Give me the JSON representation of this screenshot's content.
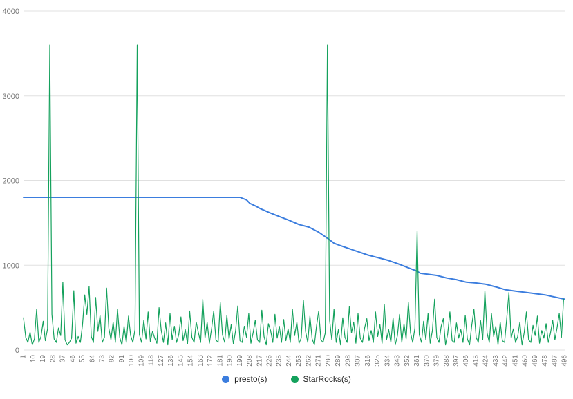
{
  "colors": {
    "grid": "#e0e0e0",
    "axis_text": "#757575",
    "legend_text": "#222222",
    "background": "#ffffff"
  },
  "chart_data": {
    "type": "line",
    "title": "",
    "xlabel": "",
    "ylabel": "",
    "grid": "horizontal",
    "legend_position": "bottom",
    "ylim": [
      0,
      4000
    ],
    "y_ticks": [
      0,
      1000,
      2000,
      3000,
      4000
    ],
    "x_range": [
      1,
      496
    ],
    "x_tick_labels": [
      1,
      10,
      19,
      28,
      37,
      46,
      55,
      64,
      73,
      82,
      91,
      100,
      109,
      118,
      127,
      136,
      145,
      154,
      163,
      172,
      181,
      190,
      199,
      208,
      217,
      226,
      235,
      244,
      253,
      262,
      271,
      280,
      289,
      298,
      307,
      316,
      325,
      334,
      343,
      352,
      361,
      370,
      379,
      388,
      397,
      406,
      415,
      424,
      433,
      442,
      451,
      460,
      469,
      478,
      487,
      496
    ],
    "series": [
      {
        "name": "presto(s)",
        "color": "#3b7dde",
        "stroke_width": 2,
        "points": [
          [
            1,
            1800
          ],
          [
            199,
            1800
          ],
          [
            205,
            1770
          ],
          [
            208,
            1730
          ],
          [
            213,
            1700
          ],
          [
            217,
            1672
          ],
          [
            226,
            1620
          ],
          [
            235,
            1575
          ],
          [
            244,
            1530
          ],
          [
            253,
            1480
          ],
          [
            262,
            1450
          ],
          [
            271,
            1390
          ],
          [
            280,
            1310
          ],
          [
            285,
            1260
          ],
          [
            289,
            1240
          ],
          [
            298,
            1200
          ],
          [
            307,
            1160
          ],
          [
            316,
            1120
          ],
          [
            325,
            1090
          ],
          [
            334,
            1060
          ],
          [
            343,
            1020
          ],
          [
            352,
            975
          ],
          [
            361,
            930
          ],
          [
            364,
            905
          ],
          [
            370,
            895
          ],
          [
            379,
            880
          ],
          [
            388,
            850
          ],
          [
            397,
            830
          ],
          [
            406,
            800
          ],
          [
            415,
            790
          ],
          [
            424,
            775
          ],
          [
            433,
            745
          ],
          [
            442,
            710
          ],
          [
            451,
            695
          ],
          [
            460,
            680
          ],
          [
            469,
            665
          ],
          [
            478,
            650
          ],
          [
            487,
            625
          ],
          [
            496,
            600
          ]
        ]
      },
      {
        "name": "StarRocks(s)",
        "color": "#14a15c",
        "stroke_width": 1.2,
        "x_start": 1,
        "x_step": 2,
        "values": [
          380,
          150,
          90,
          210,
          60,
          130,
          480,
          90,
          160,
          340,
          110,
          250,
          3600,
          420,
          130,
          90,
          260,
          170,
          800,
          120,
          60,
          90,
          140,
          700,
          80,
          160,
          90,
          300,
          650,
          420,
          750,
          160,
          90,
          620,
          220,
          410,
          90,
          150,
          730,
          260,
          120,
          330,
          90,
          480,
          150,
          60,
          280,
          90,
          400,
          170,
          90,
          240,
          3600,
          180,
          90,
          350,
          130,
          450,
          100,
          220,
          140,
          80,
          500,
          230,
          90,
          320,
          60,
          430,
          120,
          280,
          90,
          180,
          390,
          110,
          240,
          70,
          460,
          150,
          90,
          330,
          200,
          90,
          600,
          140,
          330,
          80,
          250,
          460,
          120,
          90,
          560,
          180,
          90,
          410,
          130,
          300,
          70,
          230,
          520,
          110,
          90,
          280,
          150,
          430,
          80,
          200,
          350,
          120,
          90,
          470,
          160,
          60,
          310,
          230,
          90,
          420,
          140,
          280,
          90,
          360,
          110,
          250,
          90,
          480,
          170,
          330,
          80,
          140,
          590,
          220,
          90,
          400,
          130,
          60,
          280,
          460,
          120,
          90,
          200,
          3600,
          350,
          120,
          480,
          90,
          240,
          60,
          380,
          150,
          90,
          510,
          200,
          330,
          80,
          430,
          140,
          90,
          260,
          370,
          110,
          230,
          90,
          450,
          160,
          300,
          80,
          540,
          120,
          240,
          90,
          380,
          60,
          170,
          420,
          90,
          310,
          130,
          560,
          200,
          90,
          260,
          1400,
          180,
          90,
          340,
          120,
          430,
          80,
          230,
          600,
          150,
          90,
          280,
          370,
          60,
          190,
          450,
          110,
          90,
          320,
          140,
          240,
          90,
          410,
          130,
          60,
          290,
          480,
          150,
          90,
          350,
          120,
          700,
          200,
          90,
          430,
          160,
          280,
          60,
          330,
          110,
          90,
          380,
          680,
          140,
          250,
          90,
          160,
          330,
          60,
          210,
          450,
          120,
          90,
          290,
          170,
          400,
          80,
          230,
          140,
          310,
          90,
          200,
          350,
          120,
          260,
          430,
          150,
          600
        ]
      }
    ]
  }
}
